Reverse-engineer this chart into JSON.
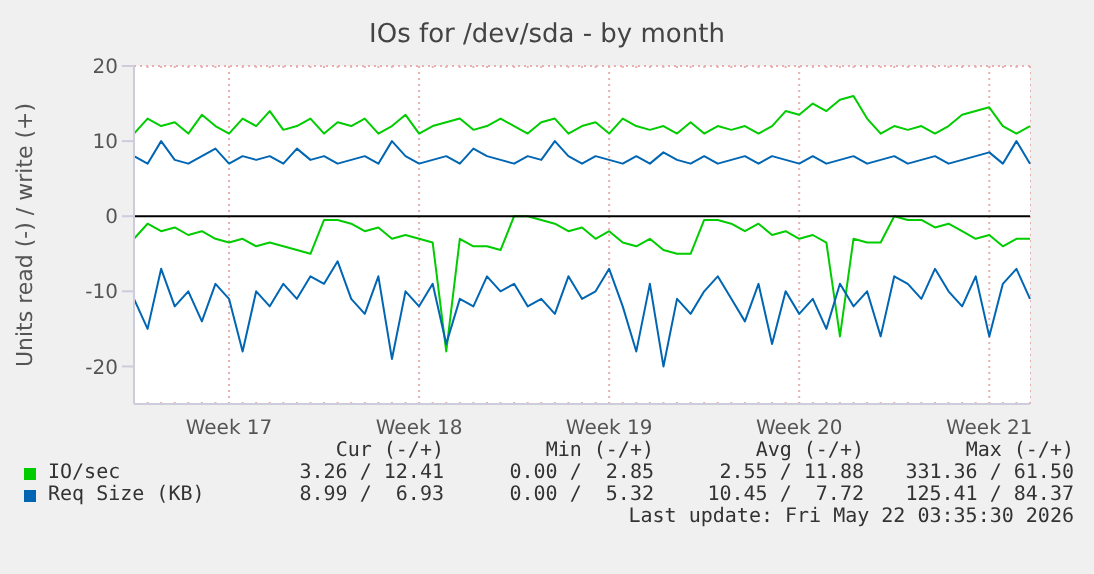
{
  "chart_data": {
    "type": "line",
    "title": "IOs for /dev/sda - by month",
    "ylabel": "Units read (-) / write (+)",
    "categories": [
      null,
      null,
      null,
      null,
      null,
      null,
      null,
      "Week 17",
      null,
      null,
      null,
      null,
      null,
      null,
      null,
      null,
      null,
      null,
      null,
      null,
      null,
      "Week 18",
      null,
      null,
      null,
      null,
      null,
      null,
      null,
      null,
      null,
      null,
      null,
      null,
      null,
      "Week 19",
      null,
      null,
      null,
      null,
      null,
      null,
      null,
      null,
      null,
      null,
      null,
      null,
      null,
      "Week 20",
      null,
      null,
      null,
      null,
      null,
      null,
      null,
      null,
      null,
      null,
      null,
      null,
      null,
      "Week 21",
      null,
      null,
      null
    ],
    "series": [
      {
        "name": "IO/sec",
        "color": "#00cc00",
        "values": [
          11,
          13,
          12,
          12.5,
          11,
          13.5,
          12,
          11,
          13,
          12,
          14,
          11.5,
          12,
          13,
          11,
          12.5,
          12,
          13,
          11,
          12,
          13.5,
          11,
          12,
          12.5,
          13,
          11.5,
          12,
          13,
          12,
          11,
          12.5,
          13,
          11,
          12,
          12.5,
          11,
          13,
          12,
          11.5,
          12,
          11,
          12.5,
          11,
          12,
          11.5,
          12,
          11,
          12,
          14,
          13.5,
          15,
          14,
          15.5,
          16,
          13,
          11,
          12,
          11.5,
          12,
          11,
          12,
          13.5,
          14,
          14.5,
          12,
          11,
          12
        ]
      },
      {
        "color": "#00cc00",
        "values": [
          -3,
          -1,
          -2,
          -1.5,
          -2.5,
          -2,
          -3,
          -3.5,
          -3,
          -4,
          -3.5,
          -4,
          -4.5,
          -5,
          -0.5,
          -0.5,
          -1,
          -2,
          -1.5,
          -3,
          -2.5,
          -3,
          -3.5,
          -18,
          -3,
          -4,
          -4,
          -4.5,
          0,
          0,
          -0.5,
          -1,
          -2,
          -1.5,
          -3,
          -2,
          -3.5,
          -4,
          -3,
          -4.5,
          -5,
          -5,
          -0.5,
          -0.5,
          -1,
          -2,
          -1,
          -2.5,
          -2,
          -3,
          -2.5,
          -3.5,
          -16,
          -3,
          -3.5,
          -3.5,
          0,
          -0.5,
          -0.5,
          -1.5,
          -1,
          -2,
          -3,
          -2.5,
          -4,
          -3,
          -3
        ]
      },
      {
        "name": "Req Size (KB)",
        "color": "#0066b3",
        "values": [
          8,
          7,
          10,
          7.5,
          7,
          8,
          9,
          7,
          8,
          7.5,
          8,
          7,
          9,
          7.5,
          8,
          7,
          7.5,
          8,
          7,
          10,
          8,
          7,
          7.5,
          8,
          7,
          9,
          8,
          7.5,
          7,
          8,
          7.5,
          10,
          8,
          7,
          8,
          7.5,
          7,
          8,
          7,
          8.5,
          7.5,
          7,
          8,
          7,
          7.5,
          8,
          7,
          8,
          7.5,
          7,
          8,
          7,
          7.5,
          8,
          7,
          7.5,
          8,
          7,
          7.5,
          8,
          7,
          7.5,
          8,
          8.5,
          7,
          10,
          7
        ]
      },
      {
        "color": "#0066b3",
        "values": [
          -11,
          -15,
          -7,
          -12,
          -10,
          -14,
          -9,
          -11,
          -18,
          -10,
          -12,
          -9,
          -11,
          -8,
          -9,
          -6,
          -11,
          -13,
          -8,
          -19,
          -10,
          -12,
          -9,
          -17,
          -11,
          -12,
          -8,
          -10,
          -9,
          -12,
          -11,
          -13,
          -8,
          -11,
          -10,
          -7,
          -12,
          -18,
          -9,
          -20,
          -11,
          -13,
          -10,
          -8,
          -11,
          -14,
          -9,
          -17,
          -10,
          -13,
          -11,
          -15,
          -9,
          -12,
          -10,
          -16,
          -8,
          -9,
          -11,
          -7,
          -10,
          -12,
          -8,
          -16,
          -9,
          -7,
          -11
        ]
      }
    ],
    "ylim": [
      -25,
      20
    ],
    "yticks": [
      -20,
      -10,
      0,
      10,
      20
    ],
    "ref_lines": [
      {
        "axis": "y",
        "value": 0,
        "color": "#000000"
      }
    ],
    "grid": true,
    "legend": "bottom",
    "marker": "none",
    "line_style": "solid",
    "annotations": [
      "Cur (-/+)",
      "Min (-/+)",
      "Avg (-/+)",
      "Max (-/+)",
      "3.26 / 12.41",
      "0.00 /  2.85",
      "2.55 / 11.88",
      "331.36 / 61.50",
      "8.99 /  6.93",
      "0.00 /  5.32",
      "10.45 /  7.72",
      "125.41 / 84.37",
      "Last update: Fri May 22 03:35:30 2026"
    ]
  }
}
